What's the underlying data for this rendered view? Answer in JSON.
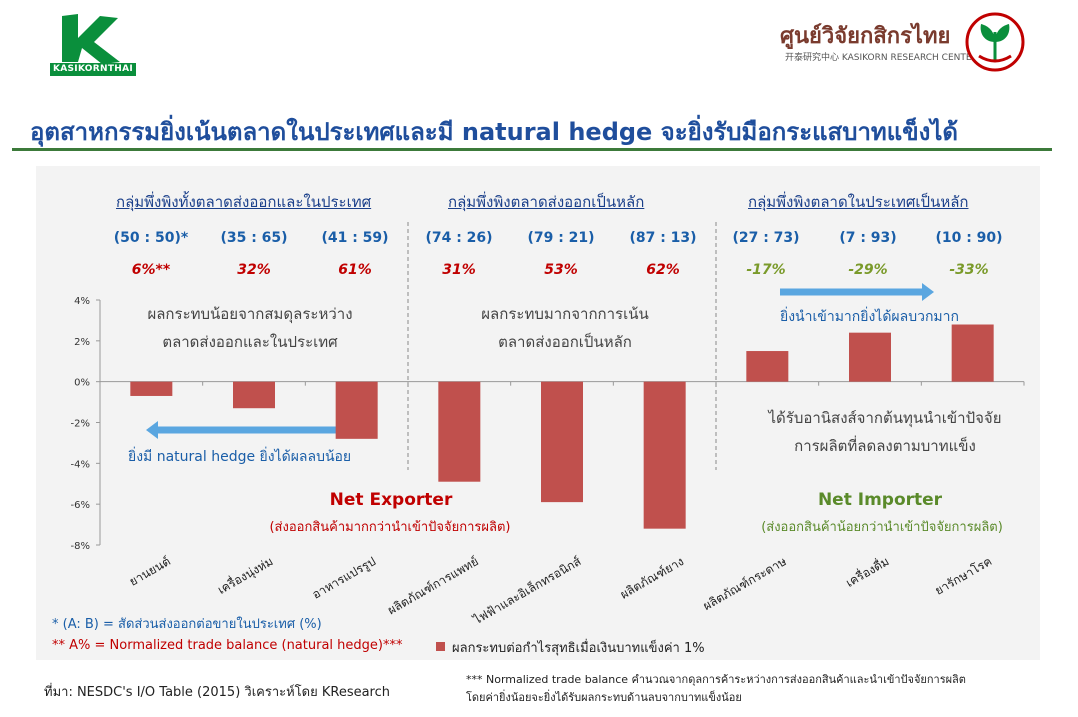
{
  "logos": {
    "kasikorn_text": "KASIKORNTHAI",
    "krc_title": "ศูนย์วิจัยกสิกรไทย",
    "krc_subtitle": "开泰研究中心 KASIKORN RESEARCH CENTER"
  },
  "headline": "อุตสาหกรรมยิ่งเน้นตลาดในประเทศและมี natural hedge จะยิ่งรับมือกระแสบาทแข็งได้",
  "groups": [
    {
      "label": "กลุ่มพึ่งพิงทั้งตลาดส่งออกและในประเทศ"
    },
    {
      "label": "กลุ่มพึ่งพิงตลาดส่งออกเป็นหลัก"
    },
    {
      "label": "กลุ่มพึ่งพิงตลาดในประเทศเป็นหลัก"
    }
  ],
  "annotations": {
    "left_box": [
      "ผลกระทบน้อยจากสมดุลระหว่าง",
      "ตลาดส่งออกและในประเทศ"
    ],
    "mid_box": [
      "ผลกระทบมากจากการเน้น",
      "ตลาดส่งออกเป็นหลัก"
    ],
    "right_box": [
      "ได้รับอานิสงส์จากต้นทุนนำเข้าปัจจัย",
      "การผลิตที่ลดลงตามบาทแข็ง"
    ],
    "hedge_arrow_text": "ยิ่งมี natural hedge ยิ่งได้ผลลบน้อย",
    "import_arrow_text": "ยิ่งนำเข้ามากยิ่งได้ผลบวกมาก",
    "net_exporter": "Net Exporter",
    "net_exporter_sub": "(ส่งออกสินค้ามากกว่านำเข้าปัจจัยการผลิต)",
    "net_importer": "Net Importer",
    "net_importer_sub": "(ส่งออกสินค้าน้อยกว่านำเข้าปัจจัยการผลิต)"
  },
  "footnotes": {
    "ab": "* (A: B) = สัดส่วนส่งออกต่อขายในประเทศ (%)",
    "a_pct": "** A% = Normalized trade balance  (natural hedge)***",
    "legend": "ผลกระทบต่อกำไรสุทธิเมื่อเงินบาทแข็งค่า 1%",
    "normalized_1": "*** Normalized trade balance คำนวณจากดุลการค้าระหว่างการส่งออกสินค้าและนำเข้าปัจจัยการผลิต",
    "normalized_2": "โดยค่ายิ่งน้อยจะยิ่งได้รับผลกระทบด้านลบจากบาทแข็งน้อย",
    "source": "ที่มา: NESDC's I/O Table (2015) วิเคราะห์โดย KResearch"
  },
  "colors": {
    "bar": "#c0504d",
    "arrow": "#5aa6e0",
    "red_text": "#c00000",
    "green_text": "#5a8a2a",
    "olive_text": "#7a9a2a",
    "headline": "#1f4e9c"
  },
  "chart_data": {
    "type": "bar",
    "categories": [
      "ยานยนต์",
      "เครื่องนุ่งห่ม",
      "อาหารแปรรูป",
      "ผลิตภัณฑ์การแพทย์",
      "ไฟฟ้าและอิเล็กทรอนิกส์",
      "ผลิตภัณฑ์ยาง",
      "ผลิตภัณฑ์กระดาษ",
      "เครื่องดื่ม",
      "ยารักษาโรค"
    ],
    "ratios": [
      "(50 : 50)*",
      "(35 : 65)",
      "(41 : 59)",
      "(74 : 26)",
      "(79 : 21)",
      "(87 : 13)",
      "(27 : 73)",
      "(7 : 93)",
      "(10 : 90)"
    ],
    "natural_hedge": [
      "6%**",
      "32%",
      "61%",
      "31%",
      "53%",
      "62%",
      "-17%",
      "-29%",
      "-33%"
    ],
    "series": [
      {
        "name": "ผลกระทบต่อกำไรสุทธิเมื่อเงินบาทแข็งค่า 1%",
        "values": [
          -0.7,
          -1.3,
          -2.8,
          -4.9,
          -5.9,
          -7.2,
          1.5,
          2.4,
          2.8
        ]
      }
    ],
    "ylim": [
      -8,
      4
    ],
    "yticks": [
      "4%",
      "2%",
      "0%",
      "-2%",
      "-4%",
      "-6%",
      "-8%"
    ],
    "legend_position": "bottom"
  }
}
